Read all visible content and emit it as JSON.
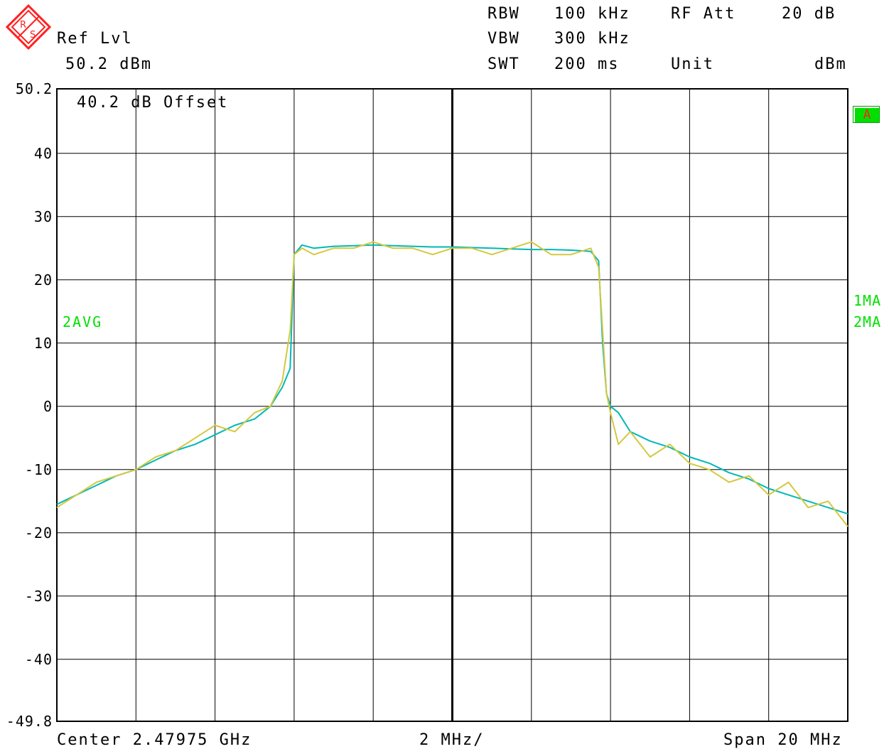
{
  "header": {
    "ref_lvl_label": "Ref Lvl",
    "ref_lvl_value": "50.2 dBm",
    "rbw_label": "RBW",
    "rbw_value": "100 kHz",
    "vbw_label": "VBW",
    "vbw_value": "300 kHz",
    "swt_label": "SWT",
    "swt_value": "200 ms",
    "rf_att_label": "RF Att",
    "rf_att_value": "20 dB",
    "unit_label": "Unit",
    "unit_value": "dBm"
  },
  "offset_note": "40.2 dB Offset",
  "trace_labels": {
    "left": "2AVG",
    "right_1": "1MA",
    "right_2": "2MA"
  },
  "badge": "A",
  "footer": {
    "center": "Center 2.47975 GHz",
    "per_div": "2 MHz/",
    "span": "Span 20 MHz"
  },
  "colors": {
    "logo": "#ff2020",
    "trace_1": "#d4c840",
    "trace_2": "#00b8b8",
    "grid": "#000000",
    "labels": "#00e000"
  },
  "chart_data": {
    "type": "line",
    "x_unit": "MHz offset from center",
    "xlim": [
      -10,
      10
    ],
    "ylim": [
      -49.8,
      50.2
    ],
    "y_tick_labels": [
      "50.2",
      "40",
      "30",
      "20",
      "10",
      "0",
      "-10",
      "-20",
      "-30",
      "-40",
      "-49.8"
    ],
    "y_tick_values": [
      50.2,
      40,
      30,
      20,
      10,
      0,
      -10,
      -20,
      -30,
      -40,
      -49.8
    ],
    "grid": true,
    "series": [
      {
        "name": "1MA",
        "color": "#d4c840",
        "x": [
          -10,
          -9.5,
          -9.0,
          -8.5,
          -8.0,
          -7.5,
          -7.0,
          -6.5,
          -6.0,
          -5.5,
          -5.0,
          -4.6,
          -4.3,
          -4.1,
          -4.0,
          -3.8,
          -3.5,
          -3.0,
          -2.5,
          -2.0,
          -1.5,
          -1.0,
          -0.5,
          0,
          0.5,
          1.0,
          1.5,
          2.0,
          2.5,
          3.0,
          3.5,
          3.7,
          3.8,
          3.9,
          4.0,
          4.2,
          4.5,
          5.0,
          5.5,
          6.0,
          6.5,
          7.0,
          7.5,
          8.0,
          8.5,
          9.0,
          9.5,
          10
        ],
        "y": [
          -16,
          -14,
          -12,
          -11,
          -10,
          -8,
          -7,
          -5,
          -3,
          -4,
          -1,
          0,
          4,
          12,
          24,
          25,
          24,
          25,
          25,
          26,
          25,
          25,
          24,
          25,
          25,
          24,
          25,
          26,
          24,
          24,
          25,
          22,
          12,
          2,
          -1,
          -6,
          -4,
          -8,
          -6,
          -9,
          -10,
          -12,
          -11,
          -14,
          -12,
          -16,
          -15,
          -19
        ]
      },
      {
        "name": "2MA",
        "color": "#00b8b8",
        "x": [
          -10,
          -9.5,
          -9.0,
          -8.5,
          -8.0,
          -7.5,
          -7.0,
          -6.5,
          -6.0,
          -5.5,
          -5.0,
          -4.6,
          -4.3,
          -4.1,
          -4.0,
          -3.8,
          -3.5,
          -3.0,
          -2.5,
          -2.0,
          -1.5,
          -1.0,
          -0.5,
          0,
          0.5,
          1.0,
          1.5,
          2.0,
          2.5,
          3.0,
          3.5,
          3.7,
          3.8,
          3.9,
          4.0,
          4.2,
          4.5,
          5.0,
          5.5,
          6.0,
          6.5,
          7.0,
          7.5,
          8.0,
          8.5,
          9.0,
          9.5,
          10
        ],
        "y": [
          -15.5,
          -14,
          -12.5,
          -11,
          -10,
          -8.5,
          -7,
          -6,
          -4.5,
          -3,
          -2,
          0,
          3,
          6,
          24,
          25.5,
          25,
          25.3,
          25.4,
          25.5,
          25.4,
          25.3,
          25.2,
          25.2,
          25.1,
          25,
          24.9,
          24.8,
          24.8,
          24.7,
          24.5,
          23,
          10,
          2,
          0,
          -1,
          -4,
          -5.5,
          -6.5,
          -8,
          -9,
          -10.5,
          -11.5,
          -13,
          -14,
          -15,
          -16,
          -17
        ]
      }
    ]
  }
}
